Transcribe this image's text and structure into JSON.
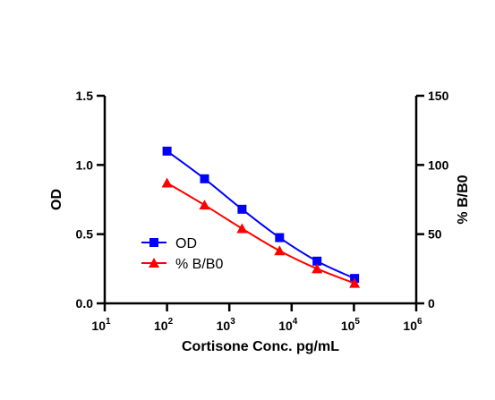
{
  "chart_data": {
    "type": "line",
    "xlabel": "Cortisone Conc. pg/mL",
    "x_scale": "log",
    "x_ticks": [
      {
        "base": "10",
        "exp": "1",
        "value": 10
      },
      {
        "base": "10",
        "exp": "2",
        "value": 100
      },
      {
        "base": "10",
        "exp": "3",
        "value": 1000
      },
      {
        "base": "10",
        "exp": "4",
        "value": 10000
      },
      {
        "base": "10",
        "exp": "5",
        "value": 100000
      },
      {
        "base": "10",
        "exp": "6",
        "value": 1000000
      }
    ],
    "xlim": [
      10,
      1000000
    ],
    "y_left": {
      "label": "OD",
      "ylim": [
        0,
        1.5
      ],
      "ticks": [
        "0.0",
        "0.5",
        "1.0",
        "1.5"
      ]
    },
    "y_right": {
      "label": "% B/B0",
      "ylim": [
        0,
        150
      ],
      "ticks": [
        "0",
        "50",
        "100",
        "150"
      ]
    },
    "legend": {
      "position": "center-left"
    },
    "series": [
      {
        "name": "OD",
        "axis": "left",
        "color": "#0000ff",
        "marker": "square",
        "x": [
          100,
          400,
          1600,
          6400,
          25600,
          102400
        ],
        "y": [
          1.1,
          0.9,
          0.68,
          0.475,
          0.305,
          0.18
        ]
      },
      {
        "name": "% B/B0",
        "axis": "right",
        "color": "#ff0000",
        "marker": "triangle",
        "x": [
          100,
          400,
          1600,
          6400,
          25600,
          102400
        ],
        "y": [
          87,
          71,
          54,
          38,
          25,
          14.5
        ]
      }
    ]
  }
}
